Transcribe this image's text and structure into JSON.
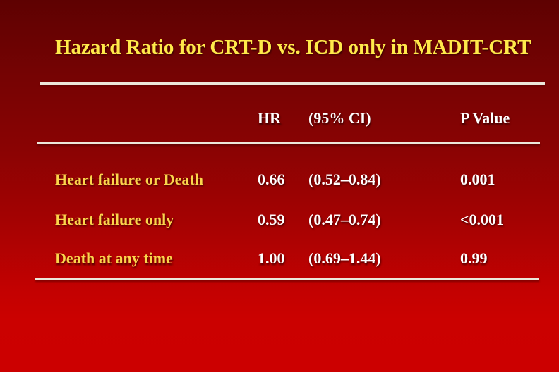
{
  "slide": {
    "title": "Hazard Ratio for CRT-D vs. ICD only in MADIT-CRT",
    "colors": {
      "background_top": "#5e0101",
      "background_bottom": "#cc0000",
      "title_text": "#ffe94a",
      "row_label_text": "#fbd54c",
      "value_text": "#ffffff",
      "rule": "#ece7da"
    }
  },
  "table": {
    "columns": {
      "hr": "HR",
      "ci": "(95% CI)",
      "p": "P Value"
    },
    "rows": [
      {
        "label": "Heart failure or Death",
        "hr": "0.66",
        "ci": "(0.52–0.84)",
        "p": "0.001"
      },
      {
        "label": "Heart failure only",
        "hr": "0.59",
        "ci": "(0.47–0.74)",
        "p": "<0.001"
      },
      {
        "label": "Death at any time",
        "hr": "1.00",
        "ci": "(0.69–1.44)",
        "p": "0.99"
      }
    ]
  },
  "chart_data": {
    "type": "table",
    "title": "Hazard Ratio for CRT-D vs. ICD only in MADIT-CRT",
    "columns": [
      "",
      "HR",
      "(95% CI)",
      "P Value"
    ],
    "rows": [
      [
        "Heart failure or Death",
        "0.66",
        "(0.52–0.84)",
        "0.001"
      ],
      [
        "Heart failure only",
        "0.59",
        "(0.47–0.74)",
        "<0.001"
      ],
      [
        "Death at any time",
        "1.00",
        "(0.69–1.44)",
        "0.99"
      ]
    ]
  }
}
